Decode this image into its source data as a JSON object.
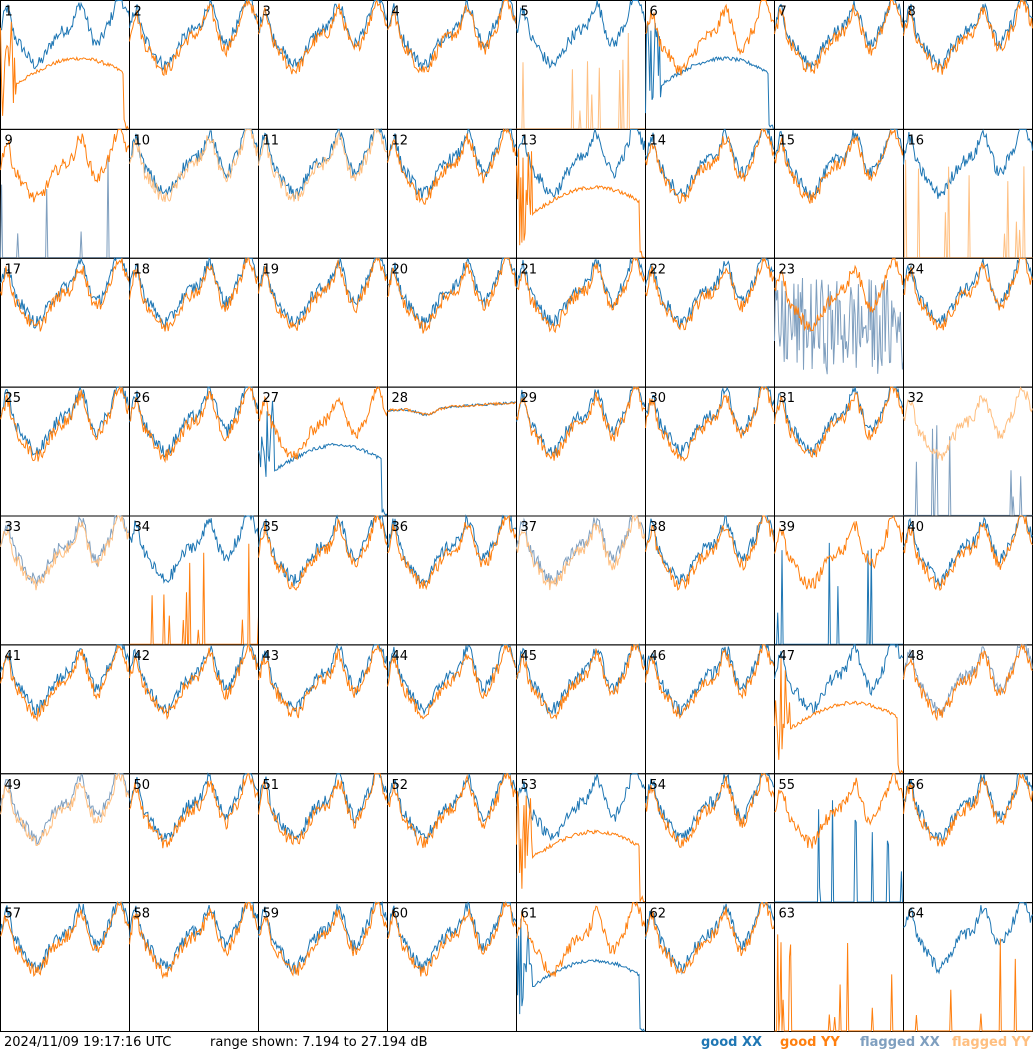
{
  "footer": {
    "timestamp": "2024/11/09 19:17:16 UTC",
    "range_text": "range shown: 7.194 to 27.194 dB"
  },
  "legend": [
    {
      "label": "good XX",
      "color": "#1f77b4"
    },
    {
      "label": "good YY",
      "color": "#ff7f0e"
    },
    {
      "label": "flagged XX",
      "color": "#7f9fbf"
    },
    {
      "label": "flagged YY",
      "color": "#ffbf80"
    }
  ],
  "chart_data": {
    "type": "line",
    "layout": "small-multiples 8x8",
    "ylim_db": [
      7.194,
      27.194
    ],
    "panels": [
      {
        "id": "1",
        "xx": "good",
        "yy": "good",
        "xx_shape": "normal",
        "yy_shape": "dropout"
      },
      {
        "id": "2",
        "xx": "good",
        "yy": "good",
        "xx_shape": "normal",
        "yy_shape": "normal"
      },
      {
        "id": "3",
        "xx": "good",
        "yy": "good",
        "xx_shape": "normal",
        "yy_shape": "normal"
      },
      {
        "id": "4",
        "xx": "good",
        "yy": "good",
        "xx_shape": "normal",
        "yy_shape": "normal"
      },
      {
        "id": "5",
        "xx": "good",
        "yy": "flagged",
        "xx_shape": "normal",
        "yy_shape": "spikes"
      },
      {
        "id": "6",
        "xx": "good",
        "yy": "good",
        "xx_shape": "dropout",
        "yy_shape": "normal"
      },
      {
        "id": "7",
        "xx": "good",
        "yy": "good",
        "xx_shape": "normal",
        "yy_shape": "normal"
      },
      {
        "id": "8",
        "xx": "good",
        "yy": "good",
        "xx_shape": "normal",
        "yy_shape": "normal"
      },
      {
        "id": "9",
        "xx": "flagged",
        "yy": "good",
        "xx_shape": "spikes",
        "yy_shape": "normal"
      },
      {
        "id": "10",
        "xx": "good",
        "yy": "flagged",
        "xx_shape": "normal",
        "yy_shape": "normal"
      },
      {
        "id": "11",
        "xx": "good",
        "yy": "flagged",
        "xx_shape": "normal",
        "yy_shape": "normal"
      },
      {
        "id": "12",
        "xx": "good",
        "yy": "good",
        "xx_shape": "normal",
        "yy_shape": "normal"
      },
      {
        "id": "13",
        "xx": "good",
        "yy": "good",
        "xx_shape": "normal",
        "yy_shape": "dropout"
      },
      {
        "id": "14",
        "xx": "good",
        "yy": "good",
        "xx_shape": "normal",
        "yy_shape": "normal"
      },
      {
        "id": "15",
        "xx": "good",
        "yy": "good",
        "xx_shape": "normal",
        "yy_shape": "normal"
      },
      {
        "id": "16",
        "xx": "good",
        "yy": "flagged",
        "xx_shape": "normal",
        "yy_shape": "spikes"
      },
      {
        "id": "17",
        "xx": "good",
        "yy": "good",
        "xx_shape": "normal",
        "yy_shape": "normal"
      },
      {
        "id": "18",
        "xx": "good",
        "yy": "good",
        "xx_shape": "normal",
        "yy_shape": "normal"
      },
      {
        "id": "19",
        "xx": "good",
        "yy": "good",
        "xx_shape": "normal",
        "yy_shape": "normal"
      },
      {
        "id": "20",
        "xx": "good",
        "yy": "good",
        "xx_shape": "normal",
        "yy_shape": "normal"
      },
      {
        "id": "21",
        "xx": "good",
        "yy": "good",
        "xx_shape": "normal",
        "yy_shape": "normal"
      },
      {
        "id": "22",
        "xx": "good",
        "yy": "good",
        "xx_shape": "normal",
        "yy_shape": "normal"
      },
      {
        "id": "23",
        "xx": "flagged",
        "yy": "good",
        "xx_shape": "noisy",
        "yy_shape": "normal"
      },
      {
        "id": "24",
        "xx": "good",
        "yy": "good",
        "xx_shape": "normal",
        "yy_shape": "normal"
      },
      {
        "id": "25",
        "xx": "good",
        "yy": "good",
        "xx_shape": "normal",
        "yy_shape": "normal"
      },
      {
        "id": "26",
        "xx": "good",
        "yy": "good",
        "xx_shape": "normal",
        "yy_shape": "normal"
      },
      {
        "id": "27",
        "xx": "good",
        "yy": "good",
        "xx_shape": "dropout",
        "yy_shape": "normal"
      },
      {
        "id": "28",
        "xx": "good",
        "yy": "good",
        "xx_shape": "flat",
        "yy_shape": "flat"
      },
      {
        "id": "29",
        "xx": "good",
        "yy": "good",
        "xx_shape": "normal",
        "yy_shape": "normal"
      },
      {
        "id": "30",
        "xx": "good",
        "yy": "good",
        "xx_shape": "normal",
        "yy_shape": "normal"
      },
      {
        "id": "31",
        "xx": "good",
        "yy": "good",
        "xx_shape": "normal",
        "yy_shape": "normal"
      },
      {
        "id": "32",
        "xx": "flagged",
        "yy": "flagged",
        "xx_shape": "spikes",
        "yy_shape": "normal"
      },
      {
        "id": "33",
        "xx": "flagged",
        "yy": "flagged",
        "xx_shape": "normal",
        "yy_shape": "normal"
      },
      {
        "id": "34",
        "xx": "good",
        "yy": "good",
        "xx_shape": "normal",
        "yy_shape": "spikes"
      },
      {
        "id": "35",
        "xx": "good",
        "yy": "good",
        "xx_shape": "normal",
        "yy_shape": "normal"
      },
      {
        "id": "36",
        "xx": "good",
        "yy": "good",
        "xx_shape": "normal",
        "yy_shape": "normal"
      },
      {
        "id": "37",
        "xx": "flagged",
        "yy": "flagged",
        "xx_shape": "normal",
        "yy_shape": "normal"
      },
      {
        "id": "38",
        "xx": "good",
        "yy": "good",
        "xx_shape": "normal",
        "yy_shape": "normal"
      },
      {
        "id": "39",
        "xx": "good",
        "yy": "good",
        "xx_shape": "spikes",
        "yy_shape": "normal"
      },
      {
        "id": "40",
        "xx": "good",
        "yy": "good",
        "xx_shape": "normal",
        "yy_shape": "normal"
      },
      {
        "id": "41",
        "xx": "good",
        "yy": "good",
        "xx_shape": "normal",
        "yy_shape": "normal"
      },
      {
        "id": "42",
        "xx": "good",
        "yy": "good",
        "xx_shape": "normal",
        "yy_shape": "normal"
      },
      {
        "id": "43",
        "xx": "good",
        "yy": "good",
        "xx_shape": "normal",
        "yy_shape": "normal"
      },
      {
        "id": "44",
        "xx": "good",
        "yy": "good",
        "xx_shape": "normal",
        "yy_shape": "normal"
      },
      {
        "id": "45",
        "xx": "good",
        "yy": "good",
        "xx_shape": "normal",
        "yy_shape": "normal"
      },
      {
        "id": "46",
        "xx": "good",
        "yy": "good",
        "xx_shape": "normal",
        "yy_shape": "normal"
      },
      {
        "id": "47",
        "xx": "good",
        "yy": "good",
        "xx_shape": "normal",
        "yy_shape": "dropout"
      },
      {
        "id": "48",
        "xx": "flagged",
        "yy": "good",
        "xx_shape": "normal",
        "yy_shape": "normal"
      },
      {
        "id": "49",
        "xx": "flagged",
        "yy": "flagged",
        "xx_shape": "normal",
        "yy_shape": "normal"
      },
      {
        "id": "50",
        "xx": "good",
        "yy": "good",
        "xx_shape": "normal",
        "yy_shape": "normal"
      },
      {
        "id": "51",
        "xx": "good",
        "yy": "good",
        "xx_shape": "normal",
        "yy_shape": "normal"
      },
      {
        "id": "52",
        "xx": "good",
        "yy": "good",
        "xx_shape": "normal",
        "yy_shape": "normal"
      },
      {
        "id": "53",
        "xx": "good",
        "yy": "good",
        "xx_shape": "normal",
        "yy_shape": "dropout"
      },
      {
        "id": "54",
        "xx": "good",
        "yy": "good",
        "xx_shape": "normal",
        "yy_shape": "normal"
      },
      {
        "id": "55",
        "xx": "good",
        "yy": "good",
        "xx_shape": "spikes",
        "yy_shape": "normal"
      },
      {
        "id": "56",
        "xx": "good",
        "yy": "good",
        "xx_shape": "normal",
        "yy_shape": "normal"
      },
      {
        "id": "57",
        "xx": "good",
        "yy": "good",
        "xx_shape": "normal",
        "yy_shape": "normal"
      },
      {
        "id": "58",
        "xx": "good",
        "yy": "good",
        "xx_shape": "normal",
        "yy_shape": "normal"
      },
      {
        "id": "59",
        "xx": "good",
        "yy": "good",
        "xx_shape": "normal",
        "yy_shape": "normal"
      },
      {
        "id": "60",
        "xx": "good",
        "yy": "good",
        "xx_shape": "normal",
        "yy_shape": "normal"
      },
      {
        "id": "61",
        "xx": "good",
        "yy": "good",
        "xx_shape": "dropout",
        "yy_shape": "normal"
      },
      {
        "id": "62",
        "xx": "good",
        "yy": "good",
        "xx_shape": "normal",
        "yy_shape": "normal"
      },
      {
        "id": "63",
        "xx": "good",
        "yy": "good",
        "xx_shape": "none",
        "yy_shape": "spikes"
      },
      {
        "id": "64",
        "xx": "good",
        "yy": "good",
        "xx_shape": "normal",
        "yy_shape": "spikes"
      }
    ]
  }
}
